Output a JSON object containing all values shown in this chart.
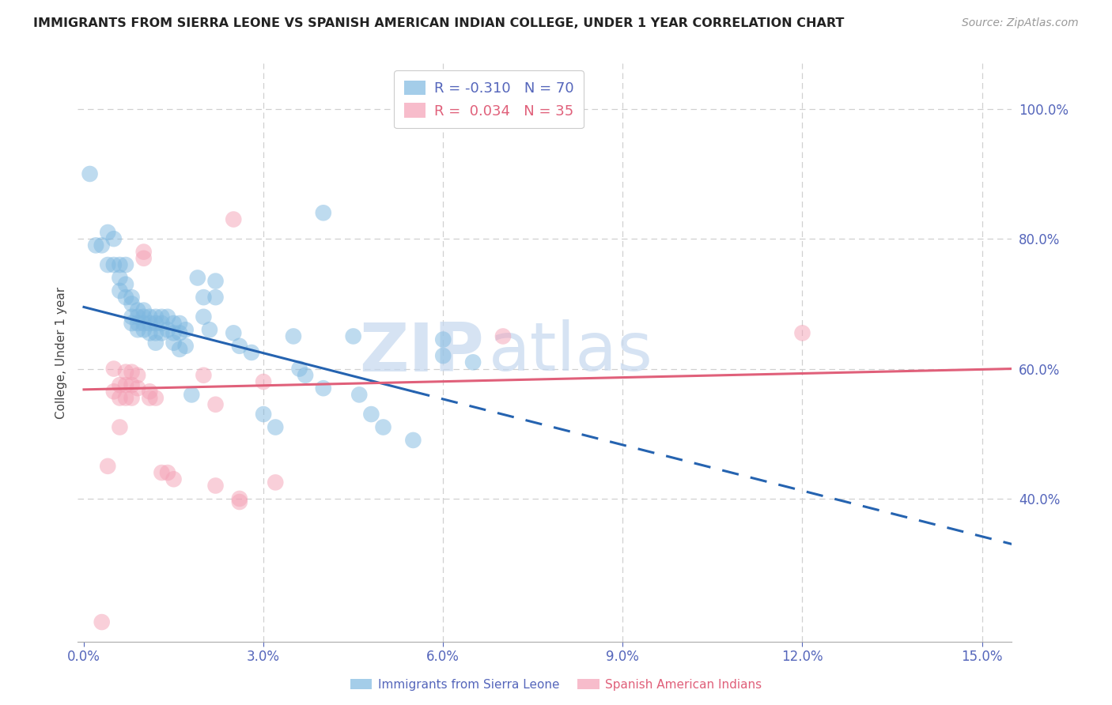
{
  "title": "IMMIGRANTS FROM SIERRA LEONE VS SPANISH AMERICAN INDIAN COLLEGE, UNDER 1 YEAR CORRELATION CHART",
  "source": "Source: ZipAtlas.com",
  "xlabel_ticks": [
    "0.0%",
    "3.0%",
    "6.0%",
    "9.0%",
    "12.0%",
    "15.0%"
  ],
  "xlabel_vals": [
    0.0,
    0.03,
    0.06,
    0.09,
    0.12,
    0.15
  ],
  "ylabel": "College, Under 1 year",
  "ylabel_ticks": [
    "40.0%",
    "60.0%",
    "80.0%",
    "100.0%"
  ],
  "ylabel_vals": [
    0.4,
    0.6,
    0.8,
    1.0
  ],
  "xlim": [
    -0.001,
    0.155
  ],
  "ylim": [
    0.18,
    1.07
  ],
  "legend_group1_label": "Immigrants from Sierra Leone",
  "legend_group2_label": "Spanish American Indians",
  "blue_scatter": [
    [
      0.001,
      0.9
    ],
    [
      0.002,
      0.79
    ],
    [
      0.003,
      0.79
    ],
    [
      0.004,
      0.81
    ],
    [
      0.004,
      0.76
    ],
    [
      0.005,
      0.8
    ],
    [
      0.005,
      0.76
    ],
    [
      0.006,
      0.76
    ],
    [
      0.006,
      0.74
    ],
    [
      0.006,
      0.72
    ],
    [
      0.007,
      0.76
    ],
    [
      0.007,
      0.73
    ],
    [
      0.007,
      0.71
    ],
    [
      0.008,
      0.71
    ],
    [
      0.008,
      0.7
    ],
    [
      0.008,
      0.68
    ],
    [
      0.008,
      0.67
    ],
    [
      0.009,
      0.69
    ],
    [
      0.009,
      0.68
    ],
    [
      0.009,
      0.67
    ],
    [
      0.009,
      0.66
    ],
    [
      0.01,
      0.69
    ],
    [
      0.01,
      0.68
    ],
    [
      0.01,
      0.67
    ],
    [
      0.01,
      0.66
    ],
    [
      0.011,
      0.68
    ],
    [
      0.011,
      0.67
    ],
    [
      0.011,
      0.655
    ],
    [
      0.012,
      0.68
    ],
    [
      0.012,
      0.67
    ],
    [
      0.012,
      0.655
    ],
    [
      0.012,
      0.64
    ],
    [
      0.013,
      0.68
    ],
    [
      0.013,
      0.67
    ],
    [
      0.013,
      0.655
    ],
    [
      0.014,
      0.68
    ],
    [
      0.014,
      0.66
    ],
    [
      0.015,
      0.67
    ],
    [
      0.015,
      0.655
    ],
    [
      0.015,
      0.64
    ],
    [
      0.016,
      0.67
    ],
    [
      0.016,
      0.655
    ],
    [
      0.016,
      0.63
    ],
    [
      0.017,
      0.66
    ],
    [
      0.017,
      0.635
    ],
    [
      0.018,
      0.56
    ],
    [
      0.019,
      0.74
    ],
    [
      0.02,
      0.71
    ],
    [
      0.02,
      0.68
    ],
    [
      0.021,
      0.66
    ],
    [
      0.022,
      0.735
    ],
    [
      0.022,
      0.71
    ],
    [
      0.025,
      0.655
    ],
    [
      0.026,
      0.635
    ],
    [
      0.028,
      0.625
    ],
    [
      0.03,
      0.53
    ],
    [
      0.032,
      0.51
    ],
    [
      0.035,
      0.65
    ],
    [
      0.036,
      0.6
    ],
    [
      0.037,
      0.59
    ],
    [
      0.04,
      0.84
    ],
    [
      0.04,
      0.57
    ],
    [
      0.045,
      0.65
    ],
    [
      0.046,
      0.56
    ],
    [
      0.048,
      0.53
    ],
    [
      0.05,
      0.51
    ],
    [
      0.055,
      0.49
    ],
    [
      0.06,
      0.645
    ],
    [
      0.06,
      0.62
    ],
    [
      0.065,
      0.61
    ]
  ],
  "pink_scatter": [
    [
      0.003,
      0.21
    ],
    [
      0.004,
      0.45
    ],
    [
      0.005,
      0.6
    ],
    [
      0.005,
      0.565
    ],
    [
      0.006,
      0.575
    ],
    [
      0.006,
      0.555
    ],
    [
      0.006,
      0.51
    ],
    [
      0.007,
      0.595
    ],
    [
      0.007,
      0.575
    ],
    [
      0.007,
      0.555
    ],
    [
      0.008,
      0.595
    ],
    [
      0.008,
      0.575
    ],
    [
      0.008,
      0.555
    ],
    [
      0.009,
      0.59
    ],
    [
      0.009,
      0.57
    ],
    [
      0.01,
      0.78
    ],
    [
      0.01,
      0.77
    ],
    [
      0.011,
      0.565
    ],
    [
      0.011,
      0.555
    ],
    [
      0.012,
      0.555
    ],
    [
      0.013,
      0.44
    ],
    [
      0.014,
      0.44
    ],
    [
      0.015,
      0.43
    ],
    [
      0.02,
      0.59
    ],
    [
      0.022,
      0.545
    ],
    [
      0.022,
      0.42
    ],
    [
      0.025,
      0.83
    ],
    [
      0.026,
      0.4
    ],
    [
      0.026,
      0.395
    ],
    [
      0.03,
      0.58
    ],
    [
      0.032,
      0.425
    ],
    [
      0.07,
      0.65
    ],
    [
      0.12,
      0.655
    ]
  ],
  "blue_line_solid": {
    "x0": 0.0,
    "y0": 0.695,
    "x1": 0.055,
    "y1": 0.565
  },
  "blue_line_dashed": {
    "x0": 0.055,
    "y0": 0.565,
    "x1": 0.155,
    "y1": 0.33
  },
  "pink_line": {
    "x0": 0.0,
    "y0": 0.568,
    "x1": 0.155,
    "y1": 0.6
  },
  "watermark_zip": "ZIP",
  "watermark_atlas": "atlas",
  "blue_color": "#7eb8e0",
  "pink_color": "#f4a0b5",
  "blue_line_color": "#2563b0",
  "pink_line_color": "#e0607a",
  "background_color": "#ffffff",
  "grid_color": "#d0d0d0",
  "axis_label_color": "#5566bb",
  "title_color": "#222222"
}
